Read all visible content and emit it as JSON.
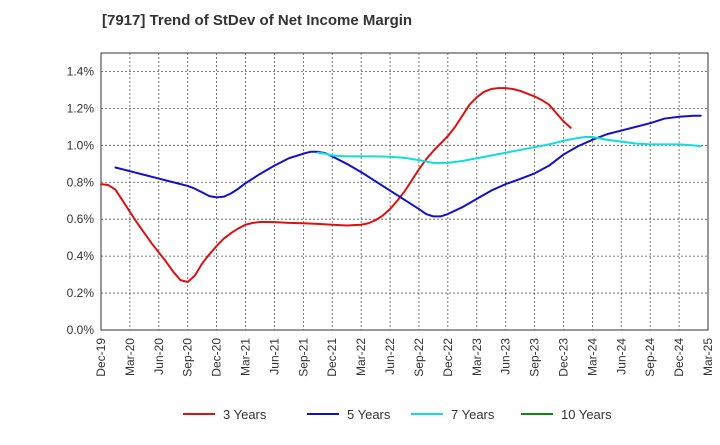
{
  "chart_data": {
    "type": "line",
    "title": "[7917]  Trend of StDev of Net Income Margin",
    "xlabel": "",
    "ylabel": "",
    "x_ticks": [
      "Dec-19",
      "Mar-20",
      "Jun-20",
      "Sep-20",
      "Dec-20",
      "Mar-21",
      "Jun-21",
      "Sep-21",
      "Dec-21",
      "Mar-22",
      "Jun-22",
      "Sep-22",
      "Dec-22",
      "Mar-23",
      "Jun-23",
      "Sep-23",
      "Dec-23",
      "Mar-24",
      "Jun-24",
      "Sep-24",
      "Dec-24",
      "Mar-25"
    ],
    "y_ticks": [
      "0.0%",
      "0.2%",
      "0.4%",
      "0.6%",
      "0.8%",
      "1.0%",
      "1.2%",
      "1.4%"
    ],
    "ylim": [
      0,
      1.5
    ],
    "grid": true,
    "legend_position": "bottom",
    "series": [
      {
        "name": "3 Years",
        "color": "#dd1111",
        "points": [
          [
            0,
            0.79
          ],
          [
            0.5,
            0.785
          ],
          [
            1,
            0.76
          ],
          [
            1.5,
            0.7
          ],
          [
            2,
            0.64
          ],
          [
            2.5,
            0.58
          ],
          [
            3,
            0.525
          ],
          [
            3.5,
            0.47
          ],
          [
            4,
            0.42
          ],
          [
            4.5,
            0.37
          ],
          [
            5,
            0.315
          ],
          [
            5.5,
            0.27
          ],
          [
            6,
            0.26
          ],
          [
            6.5,
            0.295
          ],
          [
            7,
            0.36
          ],
          [
            7.5,
            0.41
          ],
          [
            8,
            0.455
          ],
          [
            8.5,
            0.495
          ],
          [
            9,
            0.525
          ],
          [
            9.5,
            0.55
          ],
          [
            10,
            0.57
          ],
          [
            10.5,
            0.58
          ],
          [
            11,
            0.585
          ],
          [
            11.5,
            0.585
          ],
          [
            12,
            0.584
          ],
          [
            13,
            0.58
          ],
          [
            14,
            0.578
          ],
          [
            15,
            0.575
          ],
          [
            16,
            0.57
          ],
          [
            17,
            0.566
          ],
          [
            18,
            0.57
          ],
          [
            18.5,
            0.578
          ],
          [
            19,
            0.595
          ],
          [
            19.5,
            0.62
          ],
          [
            20,
            0.655
          ],
          [
            20.5,
            0.7
          ],
          [
            21,
            0.75
          ],
          [
            21.5,
            0.81
          ],
          [
            22,
            0.87
          ],
          [
            22.5,
            0.925
          ],
          [
            23,
            0.97
          ],
          [
            23.5,
            1.01
          ],
          [
            24,
            1.05
          ],
          [
            24.5,
            1.1
          ],
          [
            25,
            1.16
          ],
          [
            25.5,
            1.22
          ],
          [
            26,
            1.26
          ],
          [
            26.5,
            1.29
          ],
          [
            27,
            1.305
          ],
          [
            27.5,
            1.31
          ],
          [
            28,
            1.31
          ],
          [
            28.5,
            1.305
          ],
          [
            29,
            1.295
          ],
          [
            29.5,
            1.28
          ],
          [
            30,
            1.265
          ],
          [
            30.5,
            1.245
          ],
          [
            31,
            1.22
          ],
          [
            31.5,
            1.175
          ],
          [
            32,
            1.13
          ],
          [
            32.5,
            1.095
          ]
        ]
      },
      {
        "name": "5 Years",
        "color": "#1111cc",
        "points": [
          [
            1,
            0.88
          ],
          [
            1.5,
            0.87
          ],
          [
            2,
            0.86
          ],
          [
            3,
            0.84
          ],
          [
            4,
            0.82
          ],
          [
            5,
            0.8
          ],
          [
            6,
            0.78
          ],
          [
            6.5,
            0.765
          ],
          [
            7,
            0.745
          ],
          [
            7.5,
            0.725
          ],
          [
            8,
            0.718
          ],
          [
            8.5,
            0.722
          ],
          [
            9,
            0.74
          ],
          [
            9.5,
            0.765
          ],
          [
            10,
            0.795
          ],
          [
            11,
            0.845
          ],
          [
            12,
            0.89
          ],
          [
            13,
            0.93
          ],
          [
            14,
            0.955
          ],
          [
            14.5,
            0.965
          ],
          [
            15,
            0.965
          ],
          [
            15.5,
            0.958
          ],
          [
            16,
            0.94
          ],
          [
            17,
            0.9
          ],
          [
            18,
            0.855
          ],
          [
            19,
            0.805
          ],
          [
            20,
            0.755
          ],
          [
            21,
            0.705
          ],
          [
            22,
            0.655
          ],
          [
            22.5,
            0.628
          ],
          [
            23,
            0.615
          ],
          [
            23.5,
            0.615
          ],
          [
            24,
            0.628
          ],
          [
            25,
            0.665
          ],
          [
            26,
            0.71
          ],
          [
            27,
            0.755
          ],
          [
            28,
            0.79
          ],
          [
            29,
            0.818
          ],
          [
            30,
            0.848
          ],
          [
            31,
            0.89
          ],
          [
            32,
            0.95
          ],
          [
            33,
            0.995
          ],
          [
            34,
            1.03
          ],
          [
            35,
            1.06
          ],
          [
            36,
            1.08
          ],
          [
            37,
            1.1
          ],
          [
            38,
            1.12
          ],
          [
            39,
            1.145
          ],
          [
            40,
            1.155
          ],
          [
            41,
            1.16
          ],
          [
            41.5,
            1.16
          ]
        ]
      },
      {
        "name": "7 Years",
        "color": "#11dddd",
        "points": [
          [
            15,
            0.96
          ],
          [
            15.5,
            0.955
          ],
          [
            16,
            0.945
          ],
          [
            17,
            0.94
          ],
          [
            18,
            0.94
          ],
          [
            19,
            0.94
          ],
          [
            20,
            0.938
          ],
          [
            21,
            0.932
          ],
          [
            22,
            0.92
          ],
          [
            23,
            0.905
          ],
          [
            24,
            0.905
          ],
          [
            25,
            0.915
          ],
          [
            26,
            0.93
          ],
          [
            27,
            0.945
          ],
          [
            28,
            0.96
          ],
          [
            29,
            0.975
          ],
          [
            30,
            0.99
          ],
          [
            31,
            1.005
          ],
          [
            32,
            1.025
          ],
          [
            33,
            1.04
          ],
          [
            33.5,
            1.045
          ],
          [
            34,
            1.045
          ],
          [
            35,
            1.03
          ],
          [
            36,
            1.02
          ],
          [
            37,
            1.01
          ],
          [
            38,
            1.005
          ],
          [
            39,
            1.005
          ],
          [
            40,
            1.005
          ],
          [
            41,
            1.0
          ],
          [
            41.5,
            0.995
          ]
        ]
      },
      {
        "name": "10 Years",
        "color": "#118811",
        "points": []
      }
    ]
  }
}
